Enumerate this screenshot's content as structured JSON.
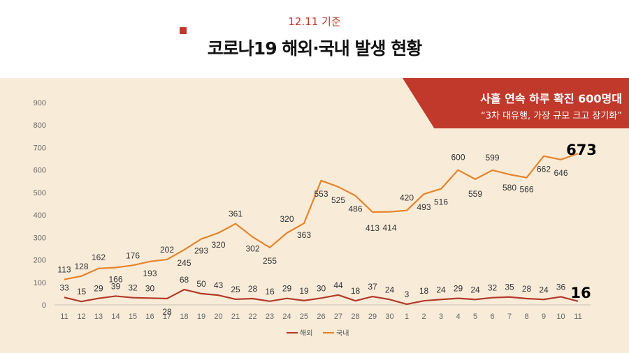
{
  "header": {
    "date_label": "12.11 기준",
    "title": "코로나19 해외·국내 발생 현황"
  },
  "banner": {
    "title": "사흘 연속 하루 확진 600명대",
    "subtitle": "“3차 대유행, 가장 규모 크고 장기화”"
  },
  "colors": {
    "accent": "#c0392b",
    "panel_bg": "#f8ecd9",
    "overseas": "#b23a2a",
    "domestic": "#e8832a"
  },
  "chart_data": {
    "type": "line",
    "categories": [
      "11",
      "12",
      "13",
      "14",
      "15",
      "16",
      "17",
      "18",
      "19",
      "20",
      "21",
      "22",
      "23",
      "24",
      "25",
      "26",
      "27",
      "28",
      "29",
      "30",
      "1",
      "2",
      "3",
      "4",
      "5",
      "6",
      "7",
      "8",
      "9",
      "10",
      "11"
    ],
    "series": [
      {
        "name": "해외",
        "color": "#b23a2a",
        "values": [
          33,
          15,
          29,
          39,
          32,
          30,
          28,
          68,
          50,
          43,
          25,
          28,
          16,
          29,
          19,
          30,
          44,
          18,
          37,
          24,
          3,
          18,
          24,
          29,
          24,
          32,
          35,
          28,
          24,
          36,
          16
        ]
      },
      {
        "name": "국내",
        "color": "#e8832a",
        "values": [
          113,
          128,
          162,
          166,
          176,
          193,
          202,
          245,
          293,
          320,
          361,
          302,
          255,
          320,
          363,
          553,
          525,
          486,
          413,
          414,
          420,
          493,
          516,
          600,
          559,
          599,
          580,
          566,
          662,
          646,
          673
        ]
      }
    ],
    "yticks": [
      0,
      100,
      200,
      300,
      400,
      500,
      600,
      700,
      800,
      900
    ],
    "ylim": [
      0,
      900
    ],
    "grid": false,
    "legend_position": "bottom-center",
    "highlighted_last_values": [
      "673",
      "16"
    ]
  }
}
